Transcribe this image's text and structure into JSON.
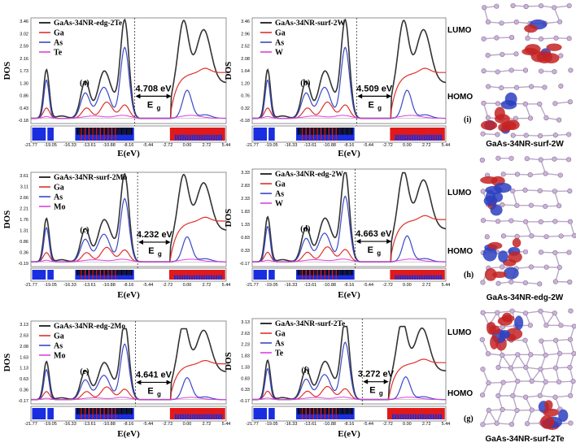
{
  "figure": {
    "colors": {
      "total": "#333333",
      "ga": "#e0302a",
      "as": "#3a48c8",
      "x": "#e040e0",
      "red_band": "#e01a1a",
      "blue_band": "#1a2ee0"
    },
    "legend_series": [
      "Ga",
      "As"
    ],
    "ylabel": "DOS",
    "xlabel": "E(eV)",
    "gap_label_main": "E",
    "gap_label_sub": "g",
    "x_ticks": [
      "-21.77",
      "-19.05",
      "-16.33",
      "-13.61",
      "-10.88",
      "-8.16",
      "-5.44",
      "-2.72",
      "0.00",
      "2.72",
      "5.44"
    ]
  },
  "chart_data": [
    {
      "type": "line",
      "panel": "(a)",
      "title": "GaAs-34NR-edg-2Te",
      "dopant": "Te",
      "gap": "4.708 eV",
      "x_range": [
        -21.77,
        5.44
      ],
      "y_ticks": [
        "3.46",
        "3.02",
        "2.59",
        "2.16",
        "1.73",
        "1.30",
        "0.86",
        "0.43",
        "-0.18"
      ],
      "ylim": [
        -0.18,
        3.46
      ],
      "gap_range": [
        -7.0,
        -2.3
      ]
    },
    {
      "type": "line",
      "panel": "(b)",
      "title": "GaAs-34NR-surf-2W",
      "dopant": "W",
      "gap": "4.509 eV",
      "x_range": [
        -21.77,
        5.44
      ],
      "y_ticks": [
        "3.46",
        "2.96",
        "2.52",
        "2.08",
        "1.64",
        "1.20",
        "0.76",
        "0.32",
        "-0.18"
      ],
      "ylim": [
        -0.18,
        3.46
      ],
      "gap_range": [
        -6.8,
        -2.3
      ]
    },
    {
      "type": "line",
      "panel": "(c)",
      "title": "GaAs-34NR-surf-2Mo",
      "dopant": "Mo",
      "gap": "4.232 eV",
      "x_range": [
        -21.77,
        5.44
      ],
      "y_ticks": [
        "3.61",
        "3.11",
        "2.66",
        "2.21",
        "1.76",
        "1.31",
        "0.86",
        "0.36",
        "-0.19"
      ],
      "ylim": [
        -0.19,
        3.61
      ],
      "gap_range": [
        -6.6,
        -2.4
      ]
    },
    {
      "type": "line",
      "panel": "(d)",
      "title": "GaAs-34NR-edg-2W",
      "dopant": "W",
      "gap": "4.663 eV",
      "x_range": [
        -21.77,
        5.44
      ],
      "y_ticks": [
        "3.33",
        "2.83",
        "2.33",
        "1.83",
        "1.33",
        "0.83",
        "0.33",
        "-0.17"
      ],
      "ylim": [
        -0.17,
        3.33
      ],
      "gap_range": [
        -7.0,
        -2.3
      ]
    },
    {
      "type": "line",
      "panel": "(e)",
      "title": "GaAs-34NR-edg-2Mo",
      "dopant": "Mo",
      "gap": "4.641 eV",
      "x_range": [
        -21.77,
        5.44
      ],
      "y_ticks": [
        "3.13",
        "2.63",
        "2.08",
        "1.63",
        "1.13",
        "0.63",
        "0.36",
        "-0.17"
      ],
      "ylim": [
        -0.17,
        3.13
      ],
      "gap_range": [
        -6.9,
        -2.3
      ]
    },
    {
      "type": "line",
      "panel": "(f)",
      "title": "GaAs-34NR-surf-2Te",
      "dopant": "Te",
      "gap": "3.272 eV",
      "x_range": [
        -21.77,
        5.44
      ],
      "y_ticks": [
        "3.13",
        "2.63",
        "2.23",
        "1.83",
        "1.33",
        "0.83",
        "0.33",
        "-0.17"
      ],
      "ylim": [
        -0.17,
        3.13
      ],
      "gap_range": [
        -6.0,
        -2.7
      ]
    }
  ],
  "molecules": [
    {
      "label": "(i)",
      "caption": "GaAs-34NR-surf-2W",
      "lumo": "LUMO",
      "homo": "HOMO"
    },
    {
      "label": "(h)",
      "caption": "GaAs-34NR-edg-2W",
      "lumo": "LUMO",
      "homo": "HOMO"
    },
    {
      "label": "(g)",
      "caption": "GaAs-34NR-surf-2Te",
      "lumo": "LUMO",
      "homo": "HOMO"
    }
  ]
}
